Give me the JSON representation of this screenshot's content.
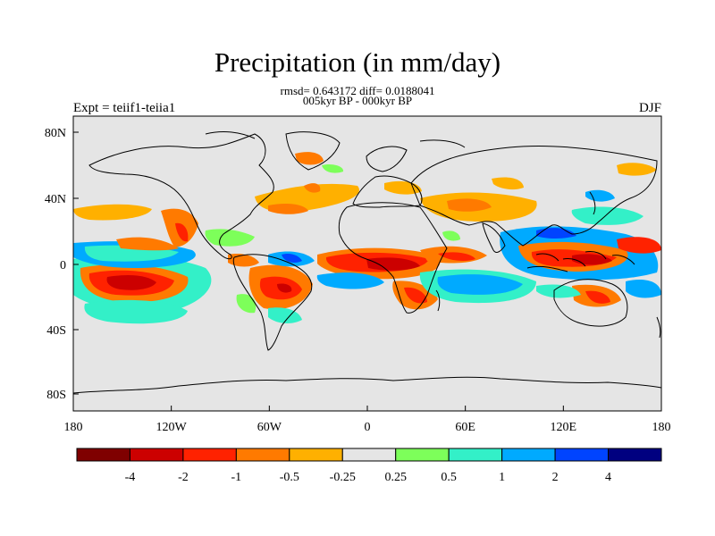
{
  "title": "Precipitation (in mm/day)",
  "subtitle_stats": "rmsd= 0.643172 diff= 0.0188041",
  "subtitle_period": "005kyr BP - 000kyr BP",
  "left_label": "Expt = teiif1-teiia1",
  "right_label": "DJF",
  "map": {
    "background_color": "#e5e5e5",
    "x_ticks": [
      "180",
      "120W",
      "60W",
      "0",
      "60E",
      "120E",
      "180"
    ],
    "y_ticks": [
      "80N",
      "40N",
      "0",
      "40S",
      "80S"
    ]
  },
  "colorbar": {
    "colors": [
      "#7f0000",
      "#cc0000",
      "#ff2200",
      "#ff7a00",
      "#ffb000",
      "#e5e5e5",
      "#7dff5a",
      "#33f0c8",
      "#00aaff",
      "#0044ff",
      "#000080"
    ],
    "labels": [
      "-4",
      "-2",
      "-1",
      "-0.5",
      "-0.25",
      "0.25",
      "0.5",
      "1",
      "2",
      "4"
    ]
  }
}
